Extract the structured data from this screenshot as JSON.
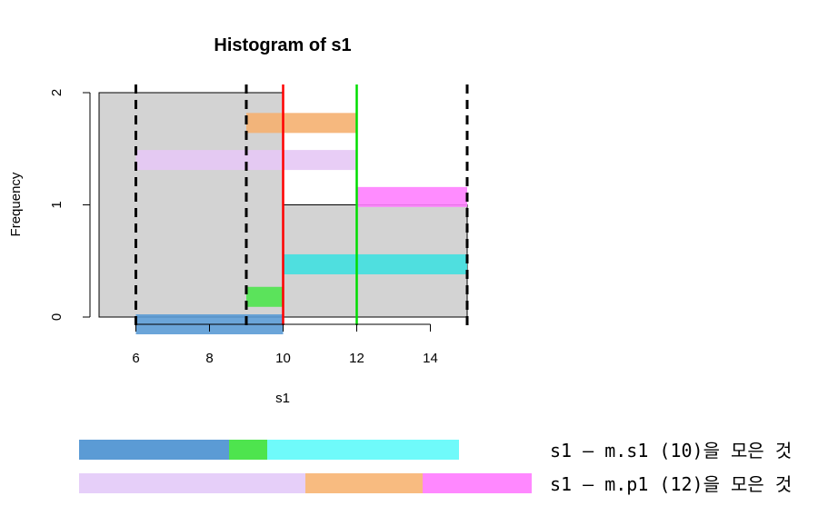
{
  "chart_data": {
    "type": "bar",
    "title": "Histogram of s1",
    "xlabel": "s1",
    "ylabel": "Frequency",
    "bins": [
      {
        "from": 5,
        "to": 10,
        "count": 2
      },
      {
        "from": 10,
        "to": 15,
        "count": 1
      }
    ],
    "xticks": [
      6,
      8,
      10,
      12,
      14
    ],
    "yticks": [
      0,
      1,
      2
    ],
    "xlim": [
      5,
      15
    ],
    "ylim": [
      0,
      2
    ],
    "bar_color": "#d3d3d3",
    "vlines": [
      {
        "x": 6,
        "style": "dashed",
        "color": "#000000"
      },
      {
        "x": 9,
        "style": "dashed",
        "color": "#000000"
      },
      {
        "x": 15,
        "style": "dashed",
        "color": "#000000"
      },
      {
        "x": 10,
        "style": "solid",
        "color": "#ff0000"
      },
      {
        "x": 12,
        "style": "solid",
        "color": "#00dd00"
      }
    ],
    "highlight_segments": [
      {
        "x": [
          6,
          10
        ],
        "y": 0,
        "color": "#5b9bd5"
      },
      {
        "x": [
          9,
          10
        ],
        "y": 0.18,
        "color": "#4ee44e"
      },
      {
        "x": [
          10,
          15
        ],
        "y": 0.47,
        "color": "#40e0e0"
      },
      {
        "x": [
          6,
          12
        ],
        "y": 1.4,
        "color": "#e6c8f5"
      },
      {
        "x": [
          9,
          12
        ],
        "y": 1.73,
        "color": "#f5b070"
      },
      {
        "x": [
          12,
          15
        ],
        "y": 1.07,
        "color": "#ff80ff"
      }
    ]
  },
  "legend": {
    "rows": [
      {
        "text": "s1 – m.s1 (10)을 모은 것",
        "segments": [
          {
            "color": "#5b9bd5",
            "fraction": 0.395
          },
          {
            "color": "#4ee44e",
            "fraction": 0.1
          },
          {
            "color": "#6ffafa",
            "fraction": 0.505
          }
        ]
      },
      {
        "text": "s1 – m.p1 (12)을 모은 것",
        "segments": [
          {
            "color": "#e6cff9",
            "fraction": 0.5
          },
          {
            "color": "#f8bb80",
            "fraction": 0.26
          },
          {
            "color": "#ff88ff",
            "fraction": 0.24
          }
        ]
      }
    ]
  }
}
